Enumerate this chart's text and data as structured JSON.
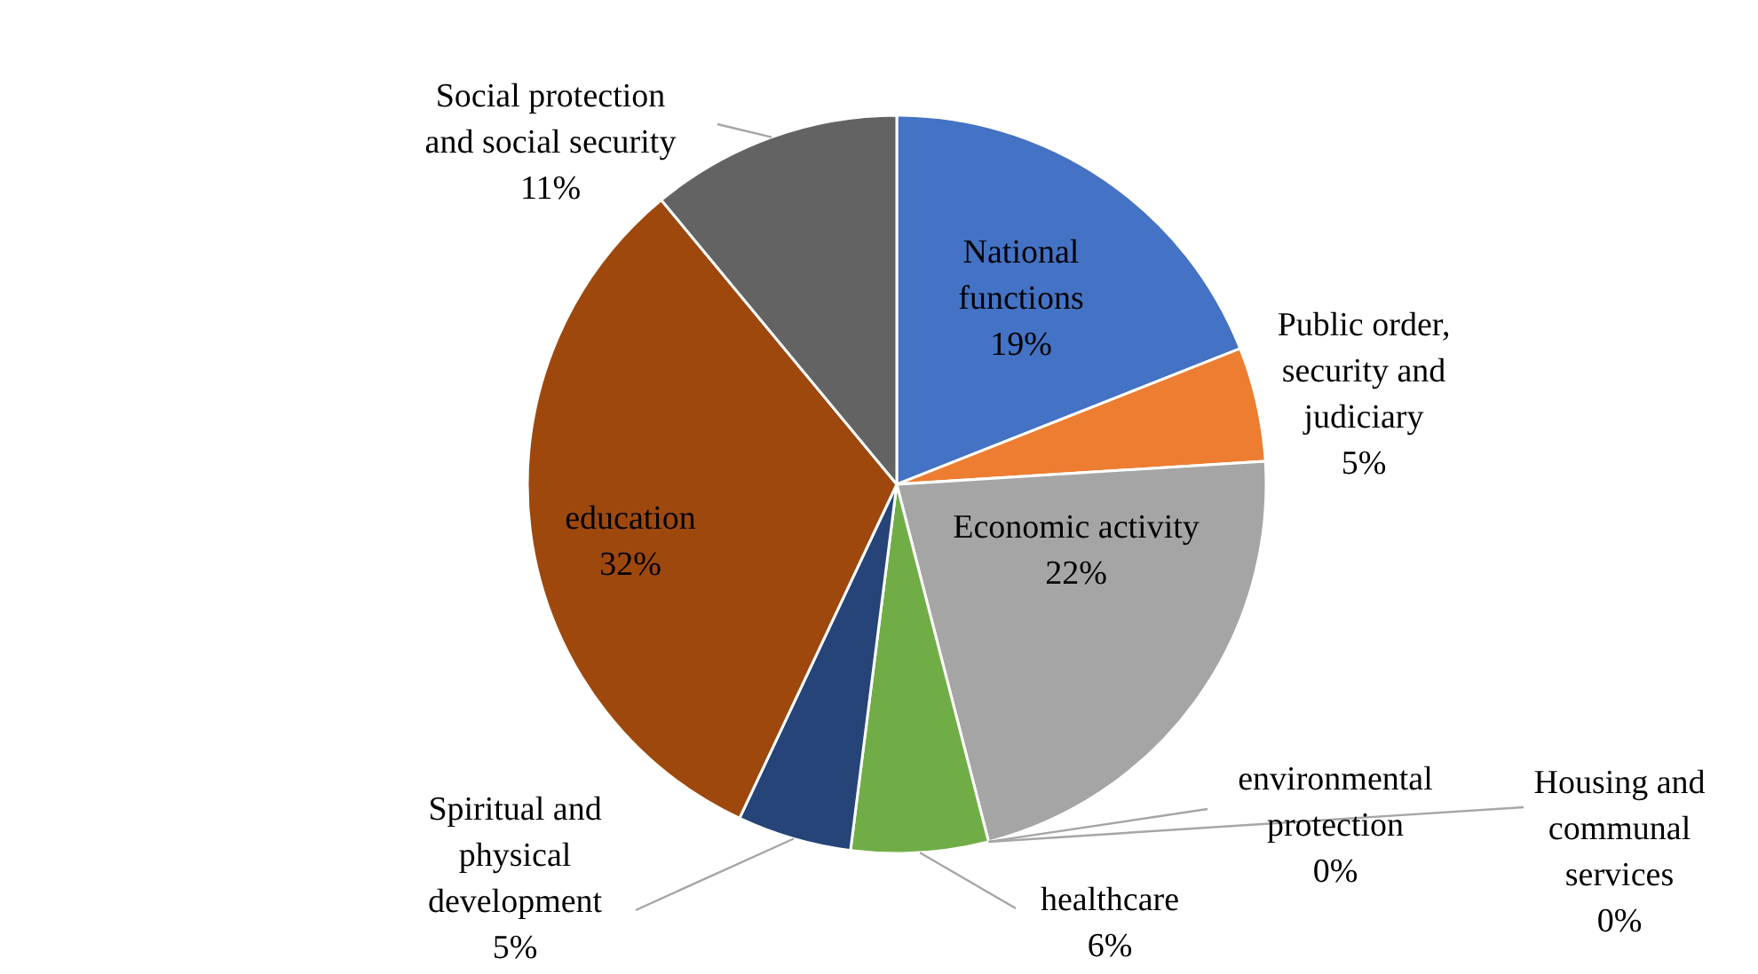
{
  "chart_data": {
    "type": "pie",
    "categories": [
      "National functions",
      "Public order, security and judiciary",
      "Economic activity",
      "environmental protection",
      "Housing and communal services",
      "healthcare",
      "Spiritual and physical development",
      "education",
      "Social protection and social security"
    ],
    "values": [
      19,
      5,
      22,
      0,
      0,
      6,
      5,
      32,
      11
    ],
    "value_labels": [
      "19%",
      "5%",
      "22%",
      "0%",
      "0%",
      "6%",
      "5%",
      "32%",
      "11%"
    ],
    "colors": [
      "#4472c4",
      "#ed7d31",
      "#a5a5a5",
      "#ffc000",
      "#5b9bd5",
      "#70ad47",
      "#264478",
      "#9e480e",
      "#636363"
    ]
  }
}
